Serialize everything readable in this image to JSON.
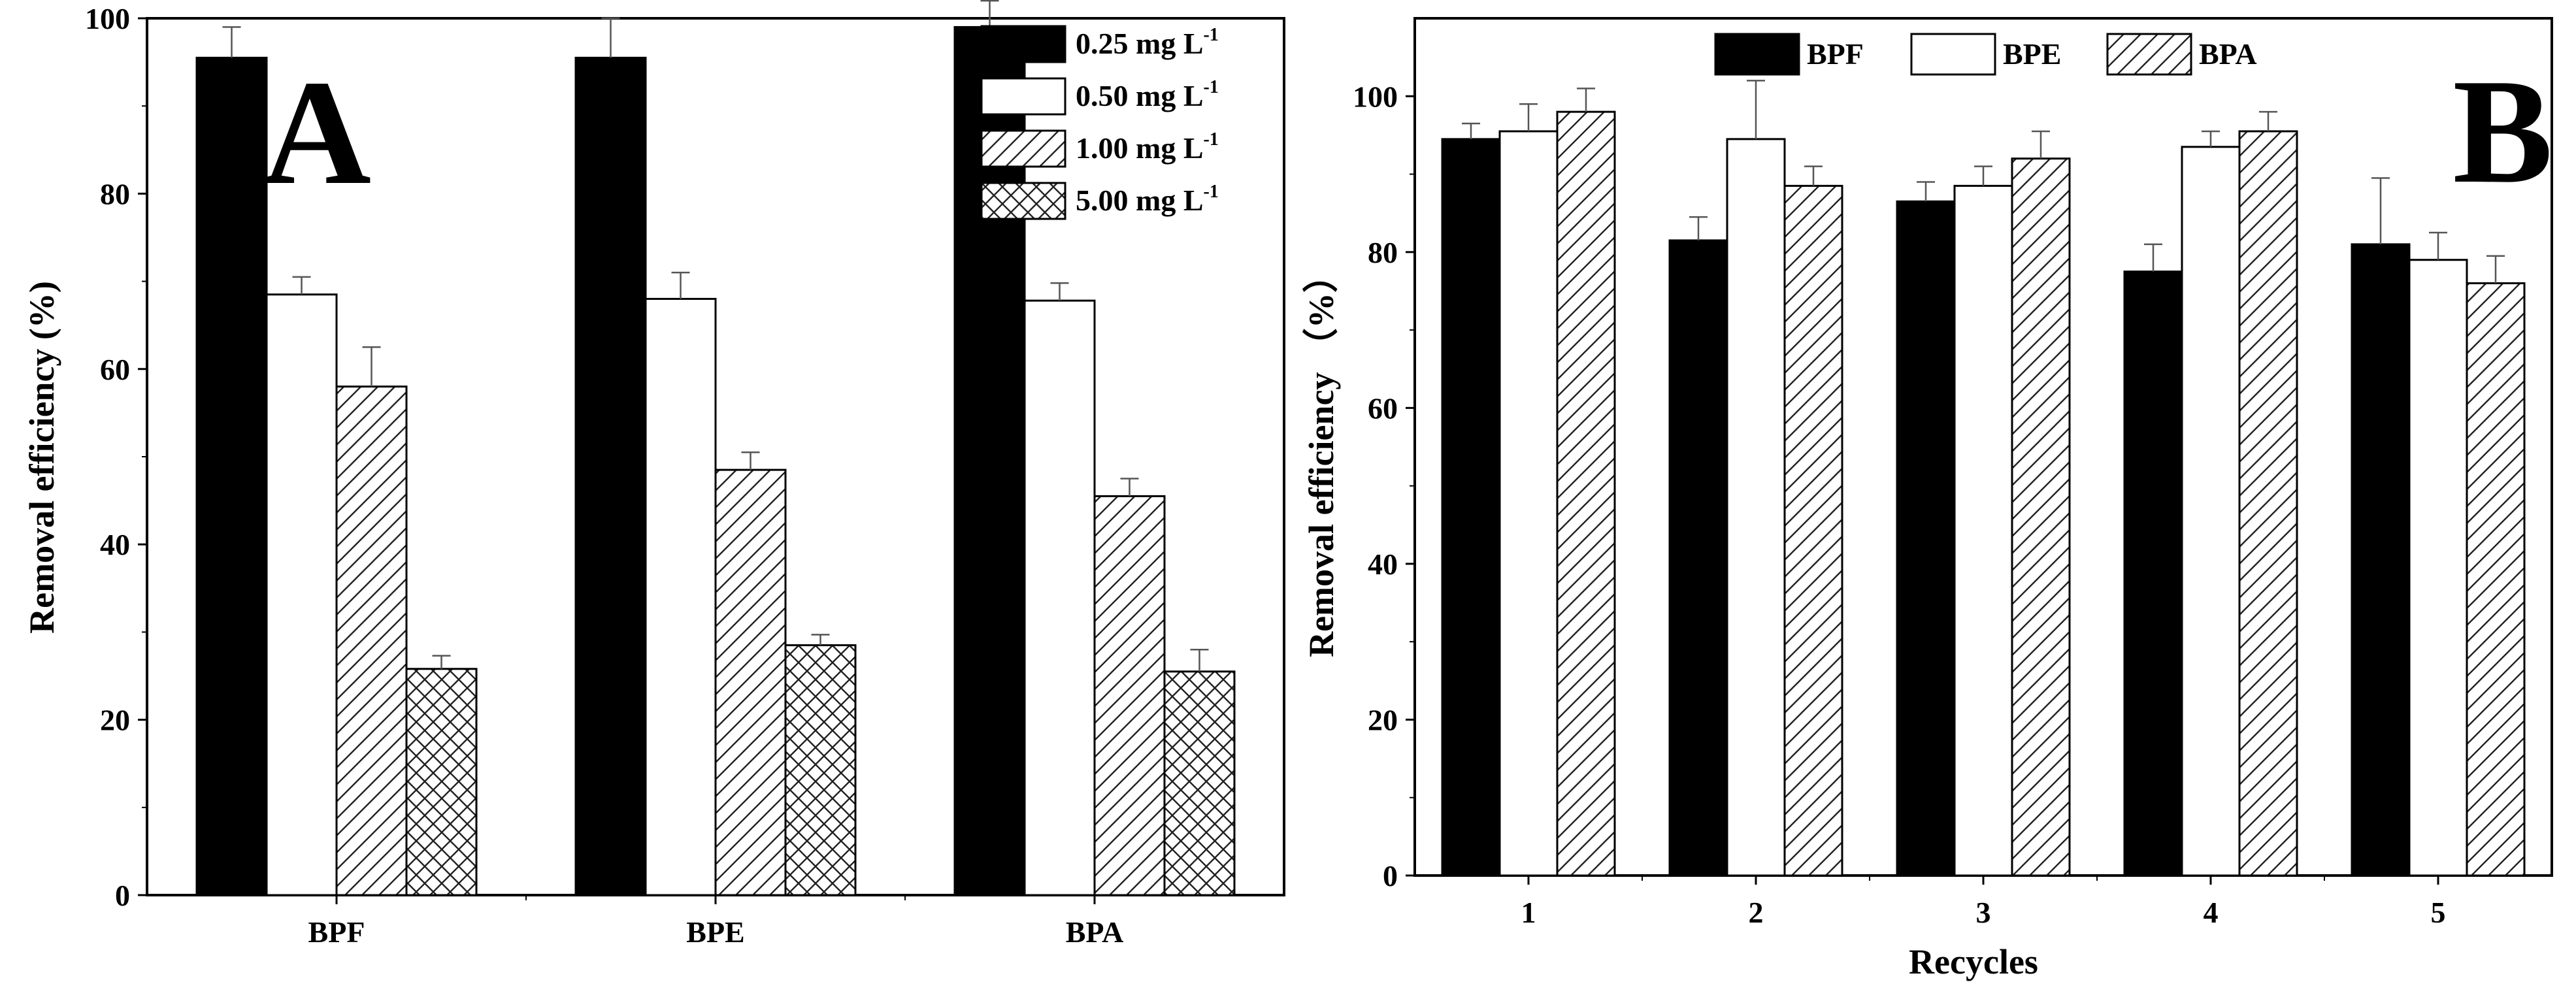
{
  "chart_data": [
    {
      "type": "bar",
      "panel_label": "A",
      "categories": [
        "BPF",
        "BPE",
        "BPA"
      ],
      "xlabel": "",
      "ylabel": "Removal efficiency (%)",
      "ylim": [
        0,
        100
      ],
      "yticks": [
        "0",
        "20",
        "40",
        "60",
        "80",
        "100"
      ],
      "grid": false,
      "legend_position": "top-right",
      "series": [
        {
          "name": "0.25 mg L",
          "superscript": "-1",
          "pattern": "solid-black",
          "values": [
            95.5,
            95.5,
            99.0
          ],
          "errors": [
            3.5,
            4.5,
            3.0
          ]
        },
        {
          "name": "0.50 mg L",
          "superscript": "-1",
          "pattern": "white",
          "values": [
            68.5,
            68.0,
            67.8
          ],
          "errors": [
            2.0,
            3.0,
            2.0
          ]
        },
        {
          "name": "1.00 mg L",
          "superscript": "-1",
          "pattern": "hatch",
          "values": [
            58.0,
            48.5,
            45.5
          ],
          "errors": [
            4.5,
            2.0,
            2.0
          ]
        },
        {
          "name": "5.00 mg L",
          "superscript": "-1",
          "pattern": "crosshatch",
          "values": [
            25.8,
            28.5,
            25.5
          ],
          "errors": [
            1.5,
            1.2,
            2.5
          ]
        }
      ]
    },
    {
      "type": "bar",
      "panel_label": "B",
      "categories": [
        "1",
        "2",
        "3",
        "4",
        "5"
      ],
      "xlabel": "Recycles",
      "ylabel": "Removal efficiency （%）",
      "ylim": [
        0,
        110
      ],
      "yticks": [
        "0",
        "20",
        "40",
        "60",
        "80",
        "100"
      ],
      "grid": false,
      "legend_position": "top-center",
      "series": [
        {
          "name": "BPF",
          "pattern": "solid-black",
          "values": [
            94.5,
            81.5,
            86.5,
            77.5,
            81.0
          ],
          "errors": [
            2.0,
            3.0,
            2.5,
            3.5,
            8.5
          ]
        },
        {
          "name": "BPE",
          "pattern": "white",
          "values": [
            95.5,
            94.5,
            88.5,
            93.5,
            79.0
          ],
          "errors": [
            3.5,
            7.5,
            2.5,
            2.0,
            3.5
          ]
        },
        {
          "name": "BPA",
          "pattern": "hatch",
          "values": [
            98.0,
            88.5,
            92.0,
            95.5,
            76.0
          ],
          "errors": [
            3.0,
            2.5,
            3.5,
            2.5,
            3.5
          ]
        }
      ]
    }
  ]
}
